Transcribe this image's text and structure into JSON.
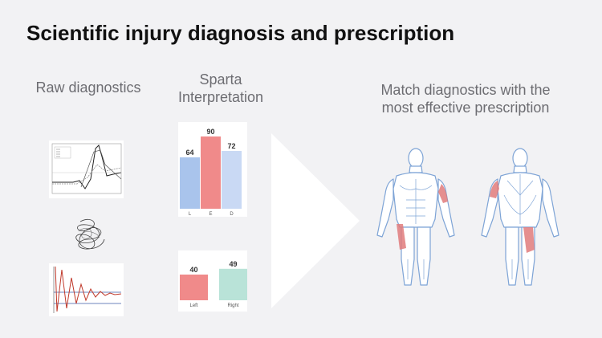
{
  "title": "Scientific injury diagnosis and prescription",
  "columns": {
    "raw": "Raw diagnostics",
    "interp": "Sparta\nInterpretation",
    "match": "Match diagnostics with the\nmost effective prescription"
  },
  "chart_data": [
    {
      "type": "bar",
      "categories": [
        "L",
        "E",
        "D"
      ],
      "values": [
        64,
        90,
        72
      ],
      "colors": [
        "#a9c4ec",
        "#f08a8a",
        "#c9d9f4"
      ],
      "ylim": [
        0,
        100
      ]
    },
    {
      "type": "bar",
      "categories": [
        "Left",
        "Right"
      ],
      "values": [
        40,
        49
      ],
      "colors": [
        "#f08a8a",
        "#b9e3d8"
      ],
      "ylim": [
        0,
        100
      ]
    }
  ],
  "colors": {
    "accent_red": "#e07b7b",
    "outline_blue": "#7ea4d6",
    "background": "#f2f2f4"
  }
}
